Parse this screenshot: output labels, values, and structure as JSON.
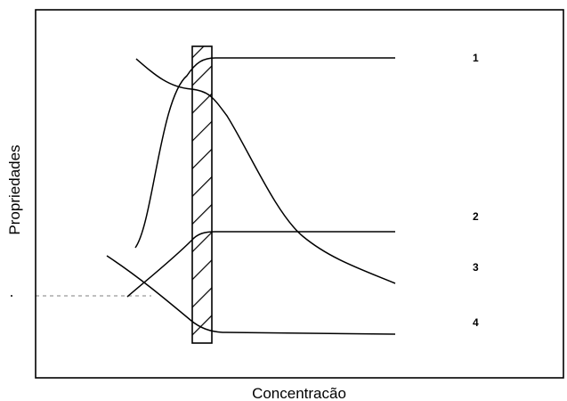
{
  "chart_data": {
    "type": "line",
    "title": "",
    "xlabel": "Concentracão",
    "ylabel": "Propriedades",
    "grid": false,
    "legend": "none",
    "series_labels": [
      "1",
      "2",
      "3",
      "4"
    ],
    "shaded_band": true
  }
}
